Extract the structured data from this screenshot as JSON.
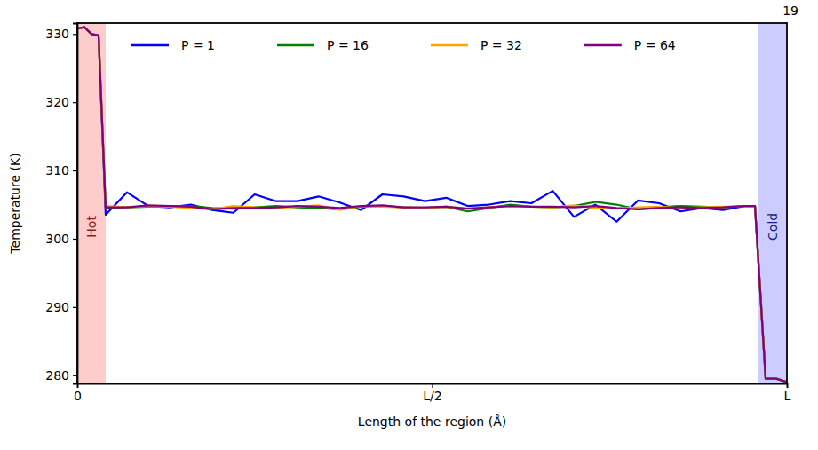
{
  "page_number": "19",
  "chart_data": {
    "type": "line",
    "x_label": "Length of the region (Å)",
    "y_label": "Temperature (K)",
    "x": [
      0,
      0.01,
      0.02,
      0.03,
      0.04,
      0.07,
      0.1,
      0.13,
      0.16,
      0.19,
      0.22,
      0.25,
      0.28,
      0.31,
      0.34,
      0.37,
      0.4,
      0.43,
      0.46,
      0.49,
      0.52,
      0.55,
      0.58,
      0.61,
      0.64,
      0.67,
      0.7,
      0.73,
      0.76,
      0.79,
      0.82,
      0.85,
      0.88,
      0.91,
      0.94,
      0.955,
      0.97,
      0.985,
      1.0
    ],
    "series": [
      {
        "name": "P = 1",
        "color": "#0000ff",
        "values": [
          330.8,
          331.0,
          330.0,
          329.8,
          303.5,
          306.8,
          304.8,
          304.6,
          305.0,
          304.2,
          303.8,
          306.5,
          305.5,
          305.5,
          306.2,
          305.3,
          304.2,
          306.5,
          306.2,
          305.5,
          306.0,
          304.8,
          305.0,
          305.5,
          305.2,
          307.0,
          303.2,
          305.0,
          302.5,
          305.6,
          305.2,
          304.0,
          304.5,
          304.2,
          304.8,
          304.8,
          279.5,
          279.5,
          279.0
        ]
      },
      {
        "name": "P = 16",
        "color": "#008000",
        "values": [
          330.8,
          331.0,
          330.0,
          329.8,
          304.5,
          304.6,
          304.7,
          304.8,
          304.8,
          304.5,
          304.4,
          304.6,
          304.8,
          304.6,
          304.5,
          304.3,
          304.7,
          304.8,
          304.6,
          304.5,
          304.7,
          304.0,
          304.5,
          305.0,
          304.7,
          304.6,
          304.8,
          305.4,
          305.0,
          304.3,
          304.6,
          304.8,
          304.7,
          304.6,
          304.8,
          304.8,
          279.5,
          279.5,
          279.0
        ]
      },
      {
        "name": "P = 32",
        "color": "#ffa500",
        "values": [
          330.8,
          331.0,
          330.0,
          329.8,
          304.8,
          304.6,
          304.8,
          304.7,
          304.5,
          304.3,
          304.8,
          304.6,
          304.5,
          304.7,
          304.9,
          304.2,
          304.8,
          304.7,
          304.6,
          304.5,
          304.7,
          304.4,
          304.6,
          304.8,
          304.7,
          304.6,
          304.9,
          304.5,
          304.4,
          304.6,
          304.7,
          304.5,
          304.6,
          304.7,
          304.8,
          304.8,
          279.5,
          279.5,
          279.0
        ]
      },
      {
        "name": "P = 64",
        "color": "#800080",
        "values": [
          330.8,
          331.0,
          330.0,
          329.8,
          304.6,
          304.6,
          304.9,
          304.8,
          304.7,
          304.3,
          304.5,
          304.5,
          304.6,
          304.8,
          304.7,
          304.5,
          304.8,
          304.9,
          304.6,
          304.6,
          304.7,
          304.4,
          304.6,
          304.8,
          304.7,
          304.7,
          304.6,
          304.8,
          304.5,
          304.3,
          304.5,
          304.6,
          304.5,
          304.6,
          304.8,
          304.8,
          279.5,
          279.5,
          279.0
        ]
      }
    ],
    "regions": [
      {
        "label": "Hot",
        "start": 0,
        "end": 0.04,
        "color": "#ffcccc",
        "text_color": "#8b1a1a"
      },
      {
        "label": "Cold",
        "start": 0.96,
        "end": 1.0,
        "color": "#ccccff",
        "text_color": "#1a1a8b"
      }
    ],
    "xlim": [
      0,
      1
    ],
    "xticks": [
      0,
      {
        "value": 0.5,
        "label": "L/2"
      },
      {
        "value": 1,
        "label": "L"
      }
    ],
    "ylim": [
      278.8,
      331.6
    ],
    "yticks": [
      280,
      290,
      300,
      310,
      320,
      330
    ],
    "legend": "top",
    "grid": false
  }
}
